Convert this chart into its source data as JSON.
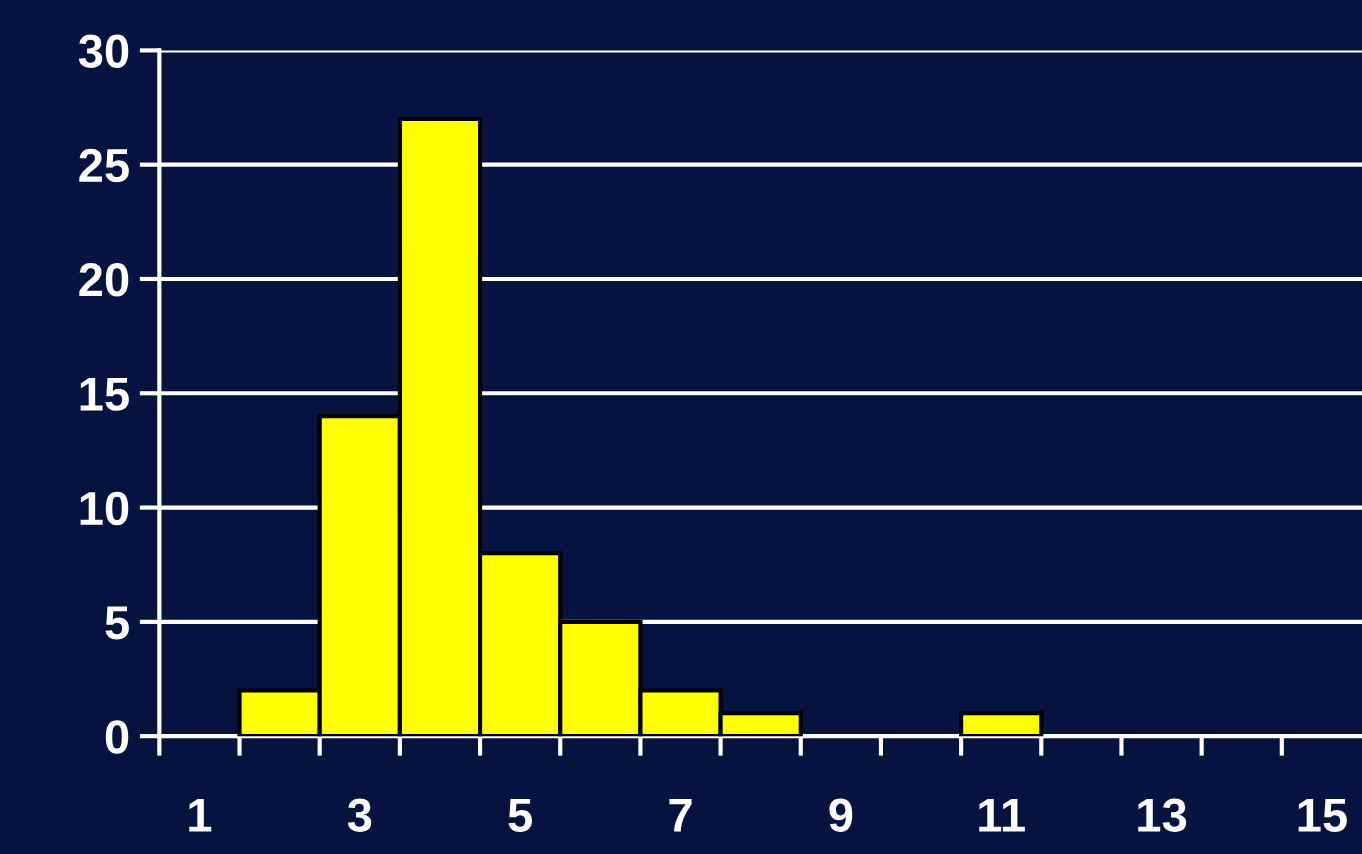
{
  "chart_data": {
    "type": "bar",
    "categories": [
      "1",
      null,
      "3",
      null,
      "5",
      null,
      "7",
      null,
      "9",
      null,
      "11",
      null,
      "13",
      null,
      "15"
    ],
    "values": [
      0,
      2,
      14,
      27,
      8,
      5,
      2,
      1,
      0,
      0,
      1,
      0,
      0,
      0,
      0
    ],
    "color": "#ffff00",
    "ylim": [
      0,
      30
    ],
    "yticks": [
      0,
      5,
      10,
      15,
      20,
      25,
      30
    ],
    "grid": "y"
  }
}
